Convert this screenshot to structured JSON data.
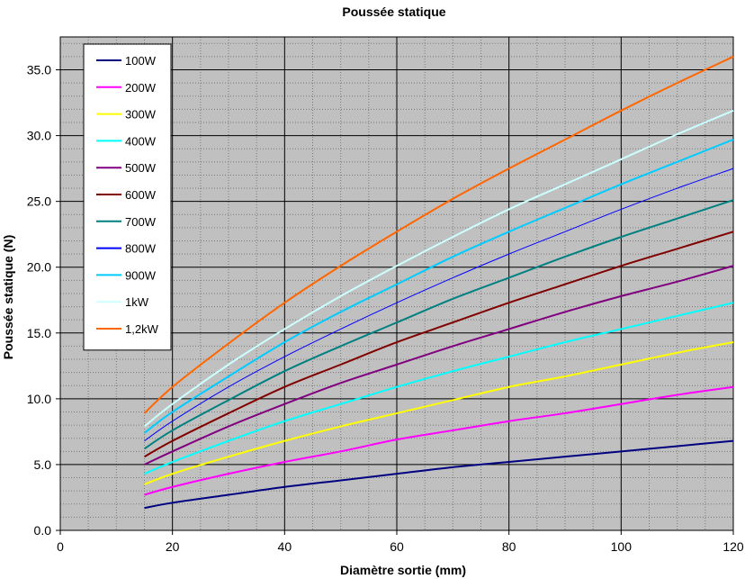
{
  "chart_data": {
    "type": "line",
    "title": "Poussée statique",
    "xlabel": "Diamètre sortie (mm)",
    "ylabel": "Poussée statique (N)",
    "xlim": [
      0,
      120
    ],
    "ylim": [
      0,
      37.5
    ],
    "x_ticks": [
      "0",
      "20",
      "40",
      "60",
      "80",
      "100",
      "120"
    ],
    "y_ticks": [
      "0.0",
      "5.0",
      "10.0",
      "15.0",
      "20.0",
      "25.0",
      "30.0",
      "35.0"
    ],
    "x_tick_values": [
      0,
      20,
      40,
      60,
      80,
      100,
      120
    ],
    "y_tick_values": [
      0,
      5,
      10,
      15,
      20,
      25,
      30,
      35
    ],
    "minor_x_step": 5,
    "minor_y_step": 1,
    "grid": true,
    "background_color": "#c0c0c0",
    "legend_position": "top-left",
    "x": [
      15,
      20,
      30,
      40,
      50,
      60,
      70,
      80,
      90,
      100,
      110,
      120
    ],
    "series": [
      {
        "name": "100W",
        "color": "#000080",
        "values": [
          1.7,
          2.1,
          2.7,
          3.3,
          3.8,
          4.3,
          4.8,
          5.2,
          5.6,
          6.0,
          6.4,
          6.8
        ]
      },
      {
        "name": "200W",
        "color": "#ff00ff",
        "values": [
          2.7,
          3.3,
          4.3,
          5.2,
          6.0,
          6.9,
          7.6,
          8.3,
          8.9,
          9.6,
          10.3,
          10.9
        ]
      },
      {
        "name": "300W",
        "color": "#ffff00",
        "values": [
          3.5,
          4.3,
          5.6,
          6.8,
          7.9,
          8.9,
          9.9,
          10.9,
          11.7,
          12.6,
          13.5,
          14.3
        ]
      },
      {
        "name": "400W",
        "color": "#00ffff",
        "values": [
          4.3,
          5.2,
          6.8,
          8.3,
          9.6,
          10.9,
          12.1,
          13.2,
          14.3,
          15.3,
          16.3,
          17.3
        ]
      },
      {
        "name": "500W",
        "color": "#800080",
        "values": [
          5.0,
          6.0,
          7.9,
          9.6,
          11.2,
          12.6,
          14.0,
          15.3,
          16.6,
          17.8,
          18.9,
          20.1
        ]
      },
      {
        "name": "600W",
        "color": "#800000",
        "values": [
          5.6,
          6.8,
          8.9,
          10.9,
          12.6,
          14.3,
          15.8,
          17.3,
          18.7,
          20.1,
          21.4,
          22.7
        ]
      },
      {
        "name": "700W",
        "color": "#008080",
        "values": [
          6.2,
          7.6,
          9.9,
          12.1,
          14.0,
          15.8,
          17.6,
          19.2,
          20.8,
          22.3,
          23.7,
          25.1
        ]
      },
      {
        "name": "800W",
        "color": "#0000ff",
        "values": [
          6.8,
          8.3,
          10.9,
          13.2,
          15.3,
          17.3,
          19.2,
          21.0,
          22.7,
          24.4,
          26.0,
          27.5
        ]
      },
      {
        "name": "900W",
        "color": "#00ccff",
        "values": [
          7.4,
          9.0,
          11.7,
          14.3,
          16.6,
          18.7,
          20.8,
          22.7,
          24.5,
          26.3,
          28.0,
          29.7
        ]
      },
      {
        "name": "1kW",
        "color": "#ccffff",
        "values": [
          7.9,
          9.6,
          12.6,
          15.3,
          17.8,
          20.1,
          22.3,
          24.4,
          26.3,
          28.2,
          30.1,
          31.9
        ]
      },
      {
        "name": "1,2kW",
        "color": "#ff6600",
        "values": [
          8.9,
          10.9,
          14.2,
          17.3,
          20.1,
          22.7,
          25.2,
          27.5,
          29.7,
          31.9,
          34.0,
          36.0
        ]
      }
    ]
  }
}
